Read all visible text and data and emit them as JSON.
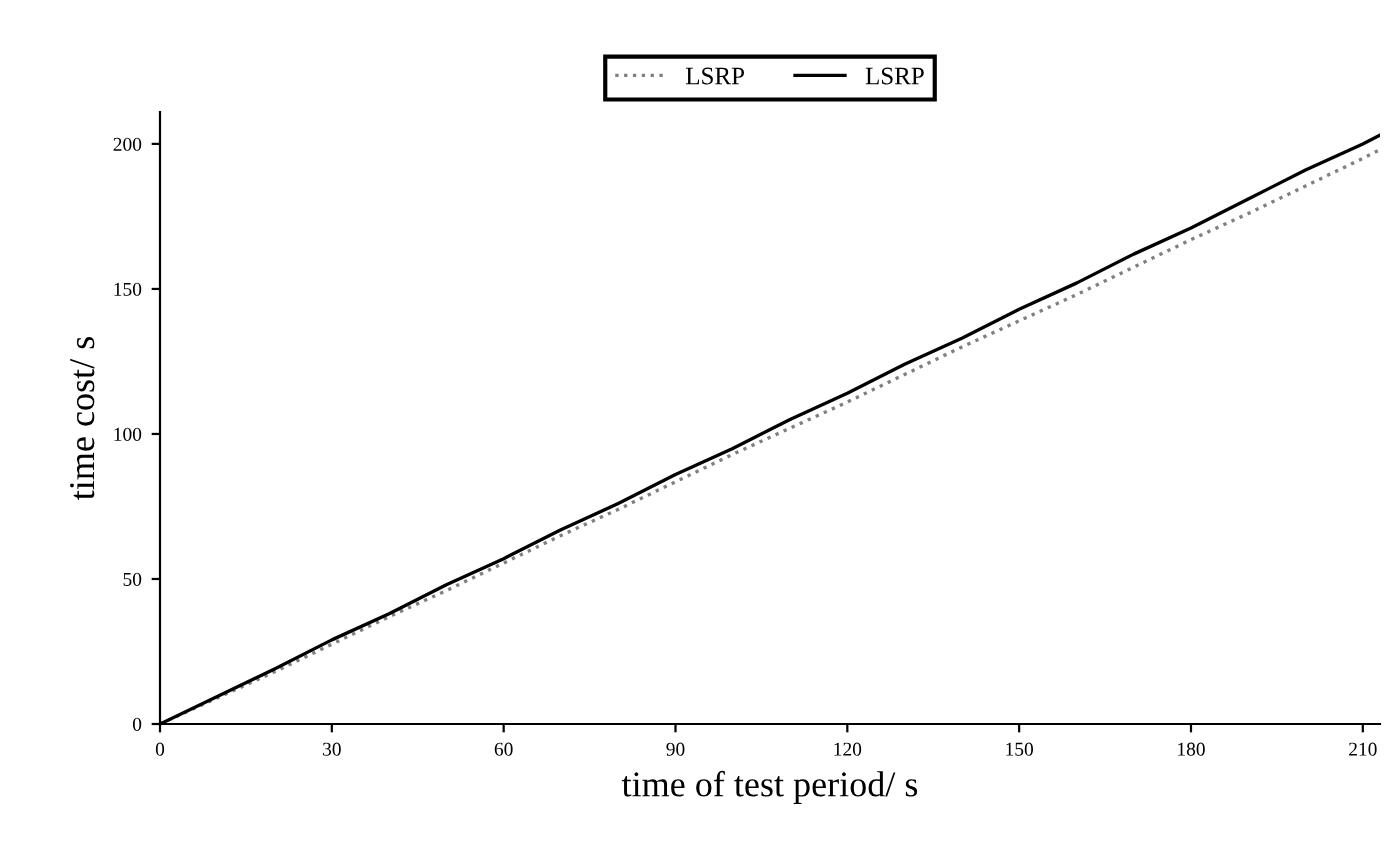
{
  "chart_data": {
    "type": "line",
    "xlabel": "time of test period/ s",
    "ylabel": "time cost/ s",
    "x": [
      0,
      10,
      20,
      30,
      40,
      50,
      60,
      70,
      80,
      90,
      100,
      110,
      120,
      130,
      140,
      150,
      160,
      170,
      180,
      190,
      200,
      210,
      213
    ],
    "series": [
      {
        "name": "LSRP",
        "color": "#808080",
        "line_style": "dotted",
        "values": [
          0,
          9,
          18,
          27.5,
          37,
          46,
          55.5,
          65,
          74,
          83.5,
          93,
          102,
          111,
          120.5,
          130,
          139,
          148,
          157.5,
          167,
          176,
          185.5,
          195,
          198
        ]
      },
      {
        "name": "LSRP",
        "color": "#000000",
        "line_style": "solid",
        "values": [
          0,
          9.5,
          19,
          29,
          38,
          48,
          57,
          67,
          76,
          86,
          95,
          105,
          114,
          124,
          133,
          143,
          152,
          162,
          171,
          181,
          191,
          200,
          203
        ]
      }
    ],
    "xlim": [
      0,
      213
    ],
    "xticks": [
      0,
      30,
      60,
      90,
      120,
      150,
      180,
      210
    ],
    "ylim": [
      0,
      211
    ],
    "yticks": [
      0,
      50,
      100,
      150,
      200
    ],
    "grid": false,
    "legend": "top",
    "marker": "none"
  }
}
